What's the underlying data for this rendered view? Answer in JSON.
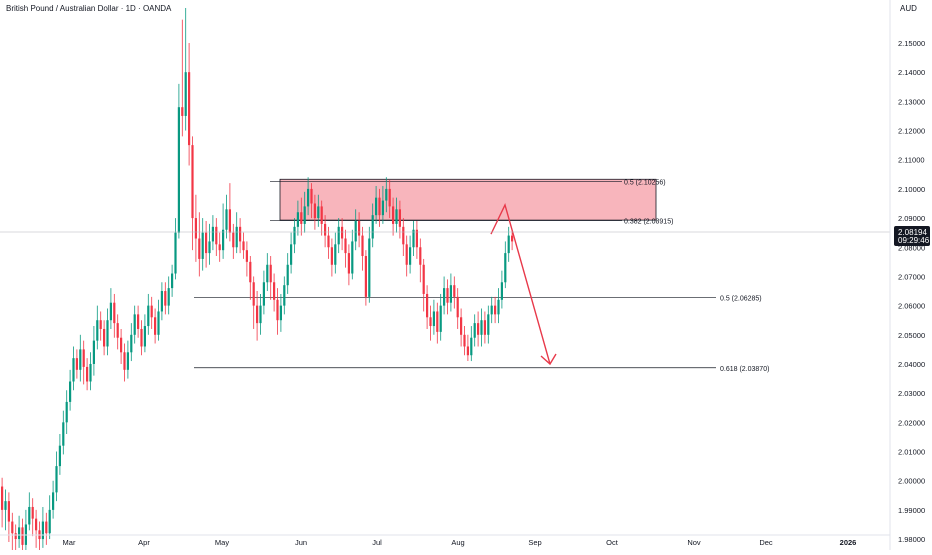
{
  "header": {
    "title": "British Pound / Australian Dollar · 1D · OANDA",
    "currency": "AUD"
  },
  "price_tag": {
    "price": "2.08194",
    "countdown": "09:29:46"
  },
  "chart_data": {
    "type": "candlestick",
    "symbol": "British Pound / Australian Dollar",
    "interval": "1D",
    "exchange": "OANDA",
    "ylim": [
      1.975,
      2.1625
    ],
    "y_ticks": [
      "2.15000",
      "2.14000",
      "2.13000",
      "2.12000",
      "2.11000",
      "2.10000",
      "2.09000",
      "2.08000",
      "2.07000",
      "2.06000",
      "2.05000",
      "2.04000",
      "2.03000",
      "2.02000",
      "2.01000",
      "2.00000",
      "1.99000",
      "1.98000"
    ],
    "x_ticks": [
      "Mar",
      "Apr",
      "May",
      "Jun",
      "Jul",
      "Aug",
      "Sep",
      "Oct",
      "Nov",
      "Dec",
      "2026"
    ],
    "current_price": 2.08194,
    "levels": [
      {
        "label": "0.5 (2.10256)",
        "value": 2.10256
      },
      {
        "label": "0.382 (2.08915)",
        "value": 2.08915
      },
      {
        "label": "0.5 (2.06285)",
        "value": 2.06285
      },
      {
        "label": "0.618 (2.03870)",
        "value": 2.0387
      }
    ],
    "resistance_zone": {
      "from": 2.0893,
      "to": 2.1033,
      "start": "Jun",
      "end": "Sep"
    },
    "projection": [
      {
        "date": "Aug",
        "price": 2.0845
      },
      {
        "date": "Aug",
        "price": 2.0945
      },
      {
        "date": "Sep",
        "price": 2.04
      }
    ],
    "colors": {
      "up": "#089981",
      "down": "#f23645",
      "zone": "#f7a8b0",
      "arrow": "#e8394a",
      "level": "#131722",
      "price_tag": "#131722"
    },
    "candles": [
      [
        1.998,
        1.99,
        2.001,
        1.984
      ],
      [
        1.99,
        1.993,
        1.997,
        1.983
      ],
      [
        1.993,
        1.986,
        1.996,
        1.979
      ],
      [
        1.986,
        1.982,
        1.989,
        1.976
      ],
      [
        1.982,
        1.98,
        1.985,
        1.976
      ],
      [
        1.98,
        1.984,
        1.988,
        1.977
      ],
      [
        1.984,
        1.978,
        1.987,
        1.974
      ],
      [
        1.978,
        1.985,
        1.99,
        1.976
      ],
      [
        1.985,
        1.991,
        1.996,
        1.983
      ],
      [
        1.991,
        1.987,
        1.994,
        1.981
      ],
      [
        1.987,
        1.983,
        1.99,
        1.977
      ],
      [
        1.983,
        1.98,
        1.986,
        1.975
      ],
      [
        1.98,
        1.986,
        1.991,
        1.977
      ],
      [
        1.986,
        1.982,
        1.989,
        1.978
      ],
      [
        1.982,
        1.99,
        1.995,
        1.98
      ],
      [
        1.99,
        1.996,
        2.0,
        1.987
      ],
      [
        1.996,
        2.005,
        2.01,
        1.993
      ],
      [
        2.005,
        2.012,
        2.016,
        2.002
      ],
      [
        2.012,
        2.02,
        2.024,
        2.009
      ],
      [
        2.02,
        2.027,
        2.031,
        2.016
      ],
      [
        2.027,
        2.034,
        2.038,
        2.024
      ],
      [
        2.034,
        2.042,
        2.046,
        2.031
      ],
      [
        2.042,
        2.038,
        2.045,
        2.035
      ],
      [
        2.038,
        2.045,
        2.05,
        2.034
      ],
      [
        2.045,
        2.039,
        2.048,
        2.033
      ],
      [
        2.039,
        2.034,
        2.042,
        2.031
      ],
      [
        2.034,
        2.04,
        2.044,
        2.031
      ],
      [
        2.04,
        2.048,
        2.053,
        2.036
      ],
      [
        2.048,
        2.055,
        2.06,
        2.045
      ],
      [
        2.055,
        2.052,
        2.058,
        2.048
      ],
      [
        2.052,
        2.046,
        2.055,
        2.043
      ],
      [
        2.046,
        2.055,
        2.059,
        2.043
      ],
      [
        2.055,
        2.061,
        2.066,
        2.052
      ],
      [
        2.061,
        2.054,
        2.064,
        2.049
      ],
      [
        2.054,
        2.049,
        2.057,
        2.045
      ],
      [
        2.049,
        2.044,
        2.052,
        2.04
      ],
      [
        2.044,
        2.038,
        2.047,
        2.034
      ],
      [
        2.038,
        2.044,
        2.048,
        2.035
      ],
      [
        2.044,
        2.05,
        2.054,
        2.041
      ],
      [
        2.05,
        2.057,
        2.06,
        2.047
      ],
      [
        2.057,
        2.052,
        2.06,
        2.049
      ],
      [
        2.052,
        2.046,
        2.055,
        2.043
      ],
      [
        2.046,
        2.053,
        2.057,
        2.044
      ],
      [
        2.053,
        2.06,
        2.064,
        2.05
      ],
      [
        2.06,
        2.056,
        2.063,
        2.052
      ],
      [
        2.056,
        2.05,
        2.059,
        2.047
      ],
      [
        2.05,
        2.058,
        2.062,
        2.048
      ],
      [
        2.058,
        2.065,
        2.068,
        2.055
      ],
      [
        2.065,
        2.06,
        2.068,
        2.057
      ],
      [
        2.06,
        2.066,
        2.07,
        2.057
      ],
      [
        2.066,
        2.071,
        2.074,
        2.063
      ],
      [
        2.071,
        2.085,
        2.09,
        2.069
      ],
      [
        2.085,
        2.128,
        2.136,
        2.083
      ],
      [
        2.128,
        2.125,
        2.158,
        2.118
      ],
      [
        2.125,
        2.14,
        2.162,
        2.12
      ],
      [
        2.14,
        2.115,
        2.15,
        2.108
      ],
      [
        2.115,
        2.09,
        2.118,
        2.079
      ],
      [
        2.09,
        2.083,
        2.098,
        2.075
      ],
      [
        2.083,
        2.076,
        2.092,
        2.07
      ],
      [
        2.076,
        2.085,
        2.09,
        2.072
      ],
      [
        2.085,
        2.078,
        2.089,
        2.073
      ],
      [
        2.078,
        2.082,
        2.088,
        2.074
      ],
      [
        2.082,
        2.087,
        2.091,
        2.079
      ],
      [
        2.087,
        2.081,
        2.09,
        2.077
      ],
      [
        2.081,
        2.079,
        2.085,
        2.075
      ],
      [
        2.079,
        2.086,
        2.095,
        2.076
      ],
      [
        2.086,
        2.093,
        2.098,
        2.083
      ],
      [
        2.093,
        2.085,
        2.102,
        2.082
      ],
      [
        2.085,
        2.08,
        2.088,
        2.076
      ],
      [
        2.08,
        2.087,
        2.092,
        2.078
      ],
      [
        2.087,
        2.082,
        2.09,
        2.078
      ],
      [
        2.082,
        2.079,
        2.085,
        2.076
      ],
      [
        2.079,
        2.075,
        2.082,
        2.07
      ],
      [
        2.075,
        2.068,
        2.077,
        2.062
      ],
      [
        2.068,
        2.06,
        2.07,
        2.052
      ],
      [
        2.06,
        2.054,
        2.065,
        2.048
      ],
      [
        2.054,
        2.06,
        2.064,
        2.05
      ],
      [
        2.06,
        2.068,
        2.072,
        2.057
      ],
      [
        2.068,
        2.074,
        2.078,
        2.065
      ],
      [
        2.074,
        2.068,
        2.077,
        2.062
      ],
      [
        2.068,
        2.062,
        2.071,
        2.058
      ],
      [
        2.062,
        2.055,
        2.066,
        2.05
      ],
      [
        2.055,
        2.06,
        2.064,
        2.051
      ],
      [
        2.06,
        2.067,
        2.07,
        2.057
      ],
      [
        2.067,
        2.074,
        2.078,
        2.064
      ],
      [
        2.074,
        2.081,
        2.085,
        2.071
      ],
      [
        2.081,
        2.087,
        2.09,
        2.078
      ],
      [
        2.087,
        2.092,
        2.096,
        2.084
      ],
      [
        2.092,
        2.088,
        2.097,
        2.084
      ],
      [
        2.088,
        2.094,
        2.099,
        2.085
      ],
      [
        2.094,
        2.1,
        2.104,
        2.091
      ],
      [
        2.1,
        2.095,
        2.102,
        2.09
      ],
      [
        2.095,
        2.09,
        2.098,
        2.086
      ],
      [
        2.09,
        2.094,
        2.098,
        2.087
      ],
      [
        2.094,
        2.088,
        2.096,
        2.084
      ],
      [
        2.088,
        2.084,
        2.091,
        2.08
      ],
      [
        2.084,
        2.08,
        2.087,
        2.076
      ],
      [
        2.08,
        2.074,
        2.083,
        2.07
      ],
      [
        2.074,
        2.081,
        2.085,
        2.071
      ],
      [
        2.081,
        2.087,
        2.09,
        2.078
      ],
      [
        2.087,
        2.083,
        2.09,
        2.079
      ],
      [
        2.083,
        2.078,
        2.086,
        2.073
      ],
      [
        2.078,
        2.071,
        2.081,
        2.067
      ],
      [
        2.071,
        2.082,
        2.086,
        2.069
      ],
      [
        2.082,
        2.089,
        2.093,
        2.079
      ],
      [
        2.089,
        2.084,
        2.092,
        2.08
      ],
      [
        2.084,
        2.077,
        2.087,
        2.072
      ],
      [
        2.077,
        2.063,
        2.079,
        2.06
      ],
      [
        2.063,
        2.083,
        2.087,
        2.061
      ],
      [
        2.083,
        2.091,
        2.095,
        2.08
      ],
      [
        2.091,
        2.097,
        2.101,
        2.088
      ],
      [
        2.097,
        2.091,
        2.1,
        2.087
      ],
      [
        2.091,
        2.096,
        2.101,
        2.088
      ],
      [
        2.096,
        2.1,
        2.104,
        2.092
      ],
      [
        2.1,
        2.094,
        2.103,
        2.09
      ],
      [
        2.094,
        2.088,
        2.097,
        2.084
      ],
      [
        2.088,
        2.093,
        2.097,
        2.085
      ],
      [
        2.093,
        2.087,
        2.096,
        2.083
      ],
      [
        2.087,
        2.081,
        2.09,
        2.077
      ],
      [
        2.081,
        2.074,
        2.084,
        2.07
      ],
      [
        2.074,
        2.08,
        2.084,
        2.071
      ],
      [
        2.08,
        2.086,
        2.089,
        2.077
      ],
      [
        2.086,
        2.08,
        2.089,
        2.076
      ],
      [
        2.08,
        2.074,
        2.083,
        2.068
      ],
      [
        2.074,
        2.064,
        2.076,
        2.058
      ],
      [
        2.064,
        2.056,
        2.067,
        2.052
      ],
      [
        2.056,
        2.053,
        2.06,
        2.048
      ],
      [
        2.053,
        2.058,
        2.062,
        2.05
      ],
      [
        2.058,
        2.051,
        2.061,
        2.047
      ],
      [
        2.051,
        2.06,
        2.064,
        2.048
      ],
      [
        2.06,
        2.066,
        2.07,
        2.057
      ],
      [
        2.066,
        2.061,
        2.069,
        2.057
      ],
      [
        2.061,
        2.067,
        2.071,
        2.058
      ],
      [
        2.067,
        2.063,
        2.07,
        2.059
      ],
      [
        2.063,
        2.056,
        2.066,
        2.052
      ],
      [
        2.056,
        2.05,
        2.059,
        2.046
      ],
      [
        2.05,
        2.046,
        2.053,
        2.043
      ],
      [
        2.046,
        2.043,
        2.05,
        2.041
      ],
      [
        2.043,
        2.049,
        2.053,
        2.041
      ],
      [
        2.049,
        2.054,
        2.057,
        2.046
      ],
      [
        2.054,
        2.05,
        2.058,
        2.046
      ],
      [
        2.05,
        2.055,
        2.059,
        2.046
      ],
      [
        2.055,
        2.05,
        2.058,
        2.047
      ],
      [
        2.05,
        2.057,
        2.06,
        2.047
      ],
      [
        2.057,
        2.06,
        2.063,
        2.054
      ],
      [
        2.06,
        2.057,
        2.063,
        2.054
      ],
      [
        2.057,
        2.062,
        2.066,
        2.054
      ],
      [
        2.062,
        2.068,
        2.072,
        2.059
      ],
      [
        2.068,
        2.078,
        2.082,
        2.066
      ],
      [
        2.078,
        2.084,
        2.087,
        2.075
      ],
      [
        2.084,
        2.082,
        2.086,
        2.079
      ]
    ]
  }
}
